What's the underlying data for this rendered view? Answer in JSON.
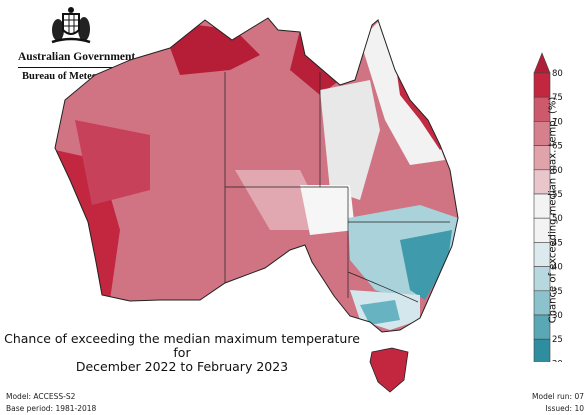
{
  "header": {
    "government": "Australian Government",
    "bureau": "Bureau of Meteorology"
  },
  "map": {
    "title_line1": "Chance of exceeding the median maximum temperature for",
    "title_line2": "December 2022 to February 2023",
    "region": "Australia",
    "regions": [
      {
        "name": "Western Australia",
        "tendency": "warmer",
        "chance_range": "60-80"
      },
      {
        "name": "Northern Territory",
        "tendency": "warmer",
        "chance_range": "60-80"
      },
      {
        "name": "South Australia",
        "tendency": "warmer",
        "chance_range": "55-75"
      },
      {
        "name": "Queensland",
        "tendency": "mixed",
        "chance_range": "40-80"
      },
      {
        "name": "New South Wales",
        "tendency": "cooler",
        "chance_range": "20-50"
      },
      {
        "name": "Victoria",
        "tendency": "cooler",
        "chance_range": "25-55"
      },
      {
        "name": "Tasmania",
        "tendency": "warmer",
        "chance_range": "65-80"
      }
    ]
  },
  "legend": {
    "title": "Chance of exceeding median max. temp. (%)",
    "ticks": [
      "80",
      "75",
      "70",
      "65",
      "60",
      "55",
      "50",
      "45",
      "40",
      "35",
      "30",
      "25",
      "20"
    ],
    "colors": [
      "#c2273f",
      "#cd5a6c",
      "#d67f8d",
      "#e0a3ac",
      "#e9c6cb",
      "#f3f3f3",
      "#f3f3f3",
      "#dceaee",
      "#b8d8df",
      "#8cc2cc",
      "#5aa8b6",
      "#2e8ea0"
    ],
    "top_arrow_color": "#b01f37",
    "bottom_arrow_color": "#35aabb"
  },
  "footer": {
    "model": "Model: ACCESS-S2",
    "base_period": "Base period: 1981-2018",
    "model_run": "Model run: 07",
    "issued": "Issued: 10"
  }
}
